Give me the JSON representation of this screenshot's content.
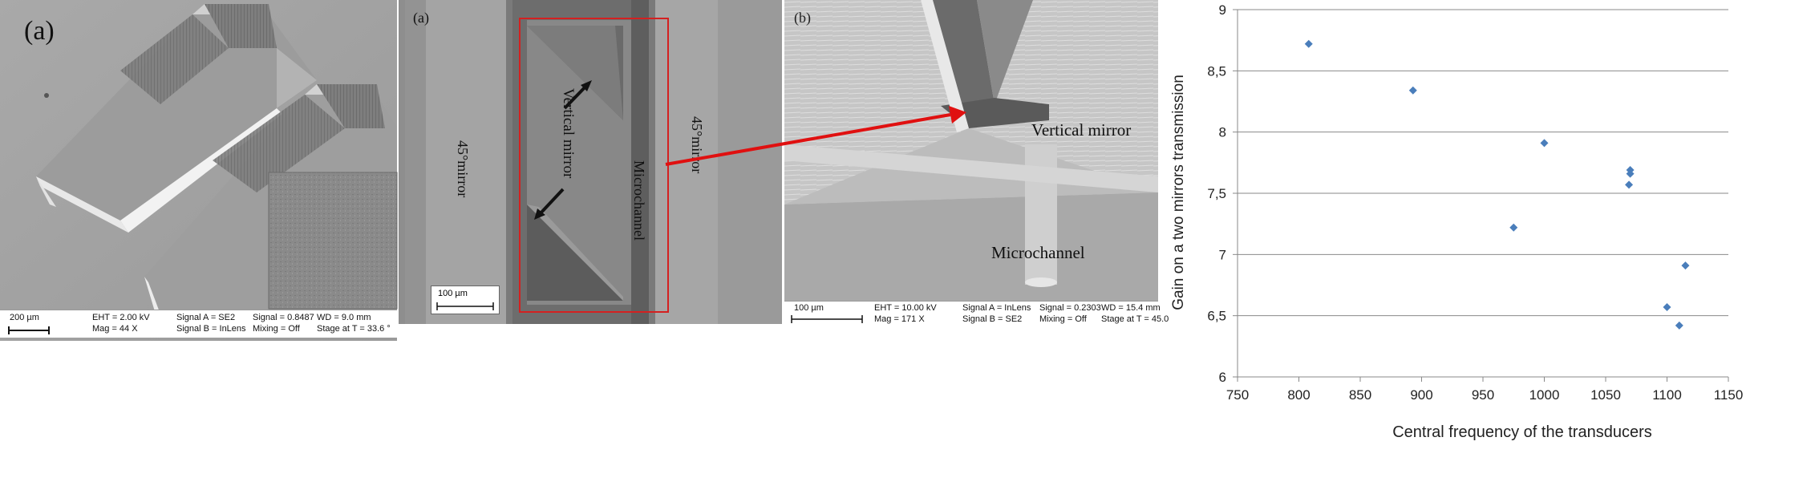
{
  "panel1": {
    "label": "(a)",
    "info": {
      "scale": "200 µm",
      "eht": "EHT =  2.00 kV",
      "mag": "Mag =    44 X",
      "signal_a": "Signal A = SE2",
      "signal_b": "Signal B = InLens",
      "signal": "Signal = 0.8487",
      "mixing": "Mixing = Off",
      "wd": "WD =  9.0 mm",
      "stage": "Stage at T =  33.6 °"
    }
  },
  "panel2": {
    "label": "(a)",
    "mirror_left": "45°mirror",
    "mirror_right": "45°mirror",
    "vertical_mirror": "Vertical mirror",
    "microchannel": "Microchannel",
    "scale": "100 µm",
    "highlight_color": "#d42020"
  },
  "panel3": {
    "label": "(b)",
    "vertical_mirror": "Vertical mirror",
    "microchannel": "Microchannel",
    "info": {
      "scale": "100 µm",
      "eht": "EHT = 10.00 kV",
      "mag": "Mag =    171 X",
      "signal_a": "Signal A = InLens",
      "signal_b": "Signal B = SE2",
      "signal": "Signal = 0.2303",
      "mixing": "Mixing = Off",
      "wd": "WD = 15.4 mm",
      "stage": "Stage at T = 45.0"
    }
  },
  "arrow_color": "#e01010",
  "chart_data": {
    "type": "scatter",
    "xlabel": "Central frequency of the transducers",
    "ylabel": "Gain on a two mirrors transmission",
    "xlim": [
      750,
      1150
    ],
    "ylim": [
      6,
      9
    ],
    "x_ticks": [
      "750",
      "800",
      "850",
      "900",
      "950",
      "1000",
      "1050",
      "1100",
      "1150"
    ],
    "y_ticks": [
      "6",
      "6,5",
      "7",
      "7,5",
      "8",
      "8,5",
      "9"
    ],
    "grid": "horizontal",
    "marker_color": "#4a7ebb",
    "points": [
      {
        "x": 808,
        "y": 8.72
      },
      {
        "x": 893,
        "y": 8.34
      },
      {
        "x": 975,
        "y": 7.22
      },
      {
        "x": 1000,
        "y": 7.91
      },
      {
        "x": 1070,
        "y": 7.69
      },
      {
        "x": 1070,
        "y": 7.66
      },
      {
        "x": 1069,
        "y": 7.57
      },
      {
        "x": 1100,
        "y": 6.57
      },
      {
        "x": 1110,
        "y": 6.42
      },
      {
        "x": 1115,
        "y": 6.91
      }
    ]
  }
}
